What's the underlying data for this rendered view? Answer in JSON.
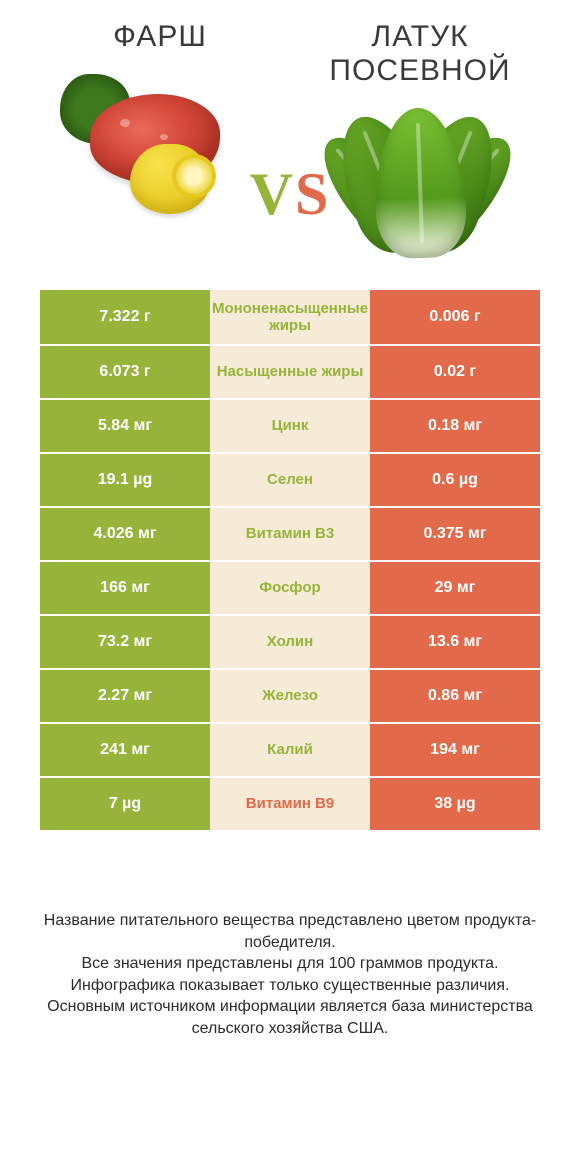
{
  "header": {
    "left_title": "ФАРШ",
    "right_title": "ЛАТУК ПОСЕВНОЙ",
    "vs_text": "VS",
    "vs_color_left": "#96b33a",
    "vs_color_right": "#e26a4a"
  },
  "colors": {
    "green": "#96b33a",
    "orange": "#e26a4a",
    "mid_bg": "#f6ebd7"
  },
  "rows": [
    {
      "left": "7.322 г",
      "mid": "Мононенасыщенные жиры",
      "right": "0.006 г",
      "winner": "left"
    },
    {
      "left": "6.073 г",
      "mid": "Насыщенные жиры",
      "right": "0.02 г",
      "winner": "left"
    },
    {
      "left": "5.84 мг",
      "mid": "Цинк",
      "right": "0.18 мг",
      "winner": "left"
    },
    {
      "left": "19.1 µg",
      "mid": "Селен",
      "right": "0.6 µg",
      "winner": "left"
    },
    {
      "left": "4.026 мг",
      "mid": "Витамин B3",
      "right": "0.375 мг",
      "winner": "left"
    },
    {
      "left": "166 мг",
      "mid": "Фосфор",
      "right": "29 мг",
      "winner": "left"
    },
    {
      "left": "73.2 мг",
      "mid": "Холин",
      "right": "13.6 мг",
      "winner": "left"
    },
    {
      "left": "2.27 мг",
      "mid": "Железо",
      "right": "0.86 мг",
      "winner": "left"
    },
    {
      "left": "241 мг",
      "mid": "Калий",
      "right": "194 мг",
      "winner": "left"
    },
    {
      "left": "7 µg",
      "mid": "Витамин B9",
      "right": "38 µg",
      "winner": "right"
    }
  ],
  "footer": {
    "line1": "Название питательного вещества представлено цветом продукта-победителя.",
    "line2": "Все значения представлены для 100 граммов продукта.",
    "line3": "Инфографика показывает только существенные различия.",
    "line4": "Основным источником информации является база министерства сельского хозяйства США."
  }
}
